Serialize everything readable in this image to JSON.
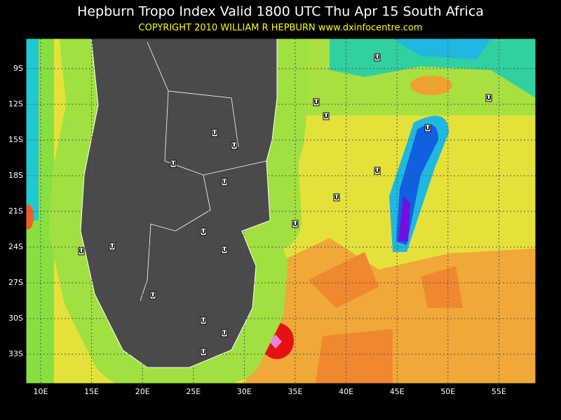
{
  "header": {
    "title": "Hepburn Tropo Index Valid 1800 UTC Thu Apr 15 South Africa",
    "copyright": "COPYRIGHT 2010   WILLIAM R HEPBURN   www.dxinfocentre.com"
  },
  "latitude_labels": [
    "9S",
    "12S",
    "15S",
    "18S",
    "21S",
    "24S",
    "27S",
    "30S",
    "33S"
  ],
  "longitude_labels": [
    "10E",
    "15E",
    "20E",
    "25E",
    "30E",
    "35E",
    "40E",
    "45E",
    "50E",
    "55E"
  ],
  "station_markers": [
    "U",
    "U",
    "U",
    "U",
    "U",
    "U",
    "U",
    "U",
    "U",
    "U",
    "U",
    "U",
    "U",
    "U",
    "U",
    "U",
    "U",
    "U",
    "U",
    "U"
  ]
}
